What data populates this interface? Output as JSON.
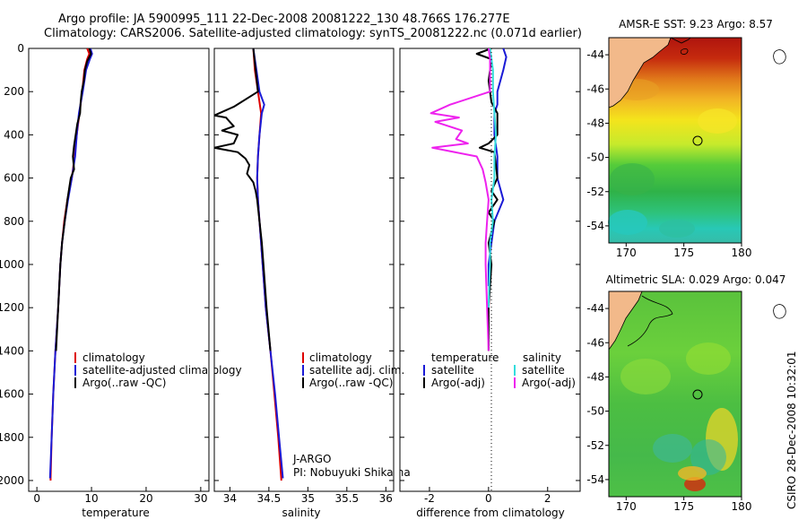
{
  "header": {
    "line1": "Argo profile: JA 5900995_111 22-Dec-2008 20081222_130 48.766S 176.277E",
    "line2": "Climatology: CARS2006. Satellite-adjusted climatology: synTS_20081222.nc (0.071d earlier)"
  },
  "colors": {
    "clim": "#dd0000",
    "sat": "#1a1ad6",
    "argo": "#000000",
    "salsat": "#33dddd",
    "salargo": "#ee22ee"
  },
  "chart_data": [
    {
      "type": "line",
      "name": "temperature",
      "xlabel": "temperature",
      "ylabel": "",
      "xlim": [
        -1.5,
        31.5
      ],
      "ylim": [
        2050,
        0
      ],
      "xticks": [
        0,
        10,
        20,
        30
      ],
      "yticks": [
        0,
        200,
        400,
        600,
        800,
        1000,
        1200,
        1400,
        1600,
        1800,
        2000
      ],
      "series": [
        {
          "name": "climatology",
          "color_key": "clim",
          "points": [
            [
              9.2,
              0
            ],
            [
              9.6,
              25
            ],
            [
              9.2,
              50
            ],
            [
              8.7,
              100
            ],
            [
              8.3,
              200
            ],
            [
              7.8,
              300
            ],
            [
              7.3,
              400
            ],
            [
              6.9,
              500
            ],
            [
              6.4,
              600
            ],
            [
              5.6,
              700
            ],
            [
              5.0,
              800
            ],
            [
              4.6,
              900
            ],
            [
              4.3,
              1000
            ],
            [
              3.9,
              1200
            ],
            [
              3.4,
              1400
            ],
            [
              3.0,
              1600
            ],
            [
              2.7,
              1800
            ],
            [
              2.5,
              2000
            ]
          ]
        },
        {
          "name": "satellite-adjusted climatology",
          "color_key": "sat",
          "points": [
            [
              9.8,
              0
            ],
            [
              10.1,
              25
            ],
            [
              9.7,
              50
            ],
            [
              9.0,
              100
            ],
            [
              8.4,
              200
            ],
            [
              7.7,
              300
            ],
            [
              7.3,
              400
            ],
            [
              7.0,
              500
            ],
            [
              6.4,
              600
            ],
            [
              5.7,
              700
            ],
            [
              5.1,
              800
            ],
            [
              4.6,
              900
            ],
            [
              4.3,
              1000
            ],
            [
              3.9,
              1200
            ],
            [
              3.4,
              1400
            ],
            [
              3.0,
              1600
            ],
            [
              2.7,
              1800
            ],
            [
              2.4,
              1990
            ]
          ]
        },
        {
          "name": "Argo(..raw -QC)",
          "color_key": "argo",
          "points": [
            [
              9.6,
              0
            ],
            [
              9.9,
              25
            ],
            [
              9.2,
              60
            ],
            [
              8.8,
              100
            ],
            [
              8.6,
              150
            ],
            [
              8.2,
              200
            ],
            [
              8.0,
              250
            ],
            [
              7.9,
              300
            ],
            [
              7.4,
              350
            ],
            [
              7.1,
              400
            ],
            [
              6.8,
              450
            ],
            [
              6.6,
              500
            ],
            [
              6.8,
              560
            ],
            [
              6.2,
              600
            ],
            [
              5.6,
              700
            ],
            [
              5.1,
              800
            ],
            [
              4.6,
              900
            ],
            [
              4.3,
              1000
            ],
            [
              3.9,
              1200
            ],
            [
              3.5,
              1400
            ]
          ]
        }
      ],
      "legend": [
        "climatology",
        "satellite-adjusted climatology",
        "Argo(..raw -QC)"
      ]
    },
    {
      "type": "line",
      "name": "salinity",
      "xlabel": "salinity",
      "ylabel": "",
      "xlim": [
        33.8,
        36.1
      ],
      "ylim": [
        2050,
        0
      ],
      "xticks": [
        34,
        34.5,
        35,
        35.5,
        36
      ],
      "xticklabels": [
        "34",
        "34.5",
        "35",
        "35.5",
        "36"
      ],
      "series": [
        {
          "name": "climatology",
          "color_key": "clim",
          "points": [
            [
              34.3,
              0
            ],
            [
              34.32,
              100
            ],
            [
              34.36,
              200
            ],
            [
              34.4,
              300
            ],
            [
              34.38,
              400
            ],
            [
              34.36,
              500
            ],
            [
              34.35,
              600
            ],
            [
              34.36,
              700
            ],
            [
              34.38,
              800
            ],
            [
              34.4,
              900
            ],
            [
              34.42,
              1000
            ],
            [
              34.46,
              1200
            ],
            [
              34.52,
              1400
            ],
            [
              34.57,
              1600
            ],
            [
              34.62,
              1800
            ],
            [
              34.66,
              2000
            ]
          ]
        },
        {
          "name": "satellite adj. clim.",
          "color_key": "sat",
          "points": [
            [
              34.3,
              0
            ],
            [
              34.34,
              100
            ],
            [
              34.38,
              200
            ],
            [
              34.44,
              260
            ],
            [
              34.41,
              300
            ],
            [
              34.38,
              400
            ],
            [
              34.36,
              500
            ],
            [
              34.35,
              600
            ],
            [
              34.36,
              700
            ],
            [
              34.38,
              800
            ],
            [
              34.4,
              900
            ],
            [
              34.42,
              1000
            ],
            [
              34.46,
              1200
            ],
            [
              34.52,
              1400
            ],
            [
              34.58,
              1600
            ],
            [
              34.63,
              1800
            ],
            [
              34.68,
              1990
            ]
          ]
        },
        {
          "name": "Argo(..raw -QC)",
          "color_key": "argo",
          "points": [
            [
              34.3,
              0
            ],
            [
              34.33,
              100
            ],
            [
              34.36,
              200
            ],
            [
              34.05,
              270
            ],
            [
              33.8,
              310
            ],
            [
              33.95,
              320
            ],
            [
              34.05,
              360
            ],
            [
              33.9,
              380
            ],
            [
              34.1,
              400
            ],
            [
              34.05,
              440
            ],
            [
              33.8,
              460
            ],
            [
              34.1,
              480
            ],
            [
              34.2,
              510
            ],
            [
              34.25,
              540
            ],
            [
              34.22,
              580
            ],
            [
              34.3,
              620
            ],
            [
              34.33,
              660
            ],
            [
              34.35,
              700
            ],
            [
              34.38,
              800
            ],
            [
              34.41,
              900
            ],
            [
              34.43,
              1000
            ],
            [
              34.47,
              1200
            ],
            [
              34.52,
              1400
            ]
          ]
        }
      ],
      "legend": [
        "climatology",
        "satellite adj. clim.",
        "Argo(..raw -QC)"
      ]
    },
    {
      "type": "line",
      "name": "difference from climatology",
      "xlabel": "difference from climatology",
      "ylabel": "",
      "xlim": [
        -3,
        3.1
      ],
      "ylim": [
        2050,
        0
      ],
      "xticks": [
        -2,
        0,
        2
      ],
      "series": [
        {
          "name": "satellite (temperature)",
          "color_key": "sat",
          "points": [
            [
              0.5,
              0
            ],
            [
              0.6,
              40
            ],
            [
              0.5,
              100
            ],
            [
              0.3,
              200
            ],
            [
              0.3,
              260
            ],
            [
              0.2,
              300
            ],
            [
              0.2,
              400
            ],
            [
              0.3,
              500
            ],
            [
              0.3,
              600
            ],
            [
              0.5,
              700
            ],
            [
              0.2,
              800
            ],
            [
              0.1,
              900
            ],
            [
              0.0,
              1000
            ],
            [
              0.0,
              1100
            ]
          ]
        },
        {
          "name": "Argo(-adj) (temperature)",
          "color_key": "argo",
          "points": [
            [
              0.1,
              0
            ],
            [
              -0.4,
              25
            ],
            [
              0.1,
              50
            ],
            [
              0.0,
              150
            ],
            [
              0.1,
              250
            ],
            [
              0.3,
              300
            ],
            [
              0.3,
              400
            ],
            [
              0.0,
              440
            ],
            [
              -0.3,
              460
            ],
            [
              0.2,
              480
            ],
            [
              0.3,
              600
            ],
            [
              0.1,
              660
            ],
            [
              0.3,
              700
            ],
            [
              0.0,
              760
            ],
            [
              0.2,
              800
            ],
            [
              0.0,
              900
            ],
            [
              0.1,
              1000
            ],
            [
              0.0,
              1200
            ],
            [
              0.0,
              1400
            ]
          ]
        },
        {
          "name": "satellite (salinity)",
          "color_key": "salsat",
          "points": [
            [
              0.05,
              0
            ],
            [
              0.15,
              100
            ],
            [
              0.15,
              200
            ],
            [
              0.2,
              300
            ],
            [
              0.25,
              400
            ],
            [
              0.2,
              500
            ],
            [
              0.2,
              600
            ],
            [
              0.1,
              700
            ],
            [
              0.15,
              800
            ],
            [
              0.05,
              900
            ],
            [
              0.05,
              1000
            ],
            [
              0.02,
              1100
            ],
            [
              0.0,
              1200
            ]
          ]
        },
        {
          "name": "Argo(-adj) (salinity)",
          "color_key": "salargo",
          "points": [
            [
              0.0,
              0
            ],
            [
              0.05,
              50
            ],
            [
              0.05,
              100
            ],
            [
              0.05,
              200
            ],
            [
              -1.3,
              260
            ],
            [
              -1.95,
              300
            ],
            [
              -1.0,
              320
            ],
            [
              -1.8,
              340
            ],
            [
              -0.9,
              380
            ],
            [
              -1.1,
              420
            ],
            [
              -0.7,
              440
            ],
            [
              -1.9,
              460
            ],
            [
              -0.4,
              500
            ],
            [
              -0.2,
              560
            ],
            [
              -0.1,
              620
            ],
            [
              0.0,
              700
            ],
            [
              -0.05,
              800
            ],
            [
              -0.1,
              900
            ],
            [
              -0.1,
              1000
            ],
            [
              -0.05,
              1200
            ],
            [
              0.0,
              1400
            ]
          ]
        }
      ],
      "legend_headers": [
        "temperature",
        "salinity"
      ],
      "legend": [
        "satellite",
        "Argo(-adj)",
        "satellite",
        "Argo(-adj)"
      ]
    },
    {
      "type": "heatmap",
      "name": "AMSR-E SST",
      "title": "AMSR-E SST: 9.23 Argo: 8.57",
      "xticks": [
        170,
        175,
        180
      ],
      "yticks": [
        -44,
        -46,
        -48,
        -50,
        -52,
        -54
      ],
      "xlim": [
        168.5,
        180
      ],
      "ylim": [
        -55,
        -43
      ],
      "argo_position": [
        176.3,
        -48.8
      ]
    },
    {
      "type": "heatmap",
      "name": "Altimetric SLA",
      "title": "Altimetric SLA: 0.029 Argo: 0.047",
      "xticks": [
        170,
        175,
        180
      ],
      "yticks": [
        -44,
        -46,
        -48,
        -50,
        -52,
        -54
      ],
      "xlim": [
        168.5,
        180
      ],
      "ylim": [
        -55,
        -43
      ],
      "argo_position": [
        176.3,
        -48.8
      ]
    }
  ],
  "credits": {
    "line1": "J-ARGO",
    "line2": "PI: Nobuyuki Shikama"
  },
  "stamp": "CSIRO 28-Dec-2008 10:32:01"
}
